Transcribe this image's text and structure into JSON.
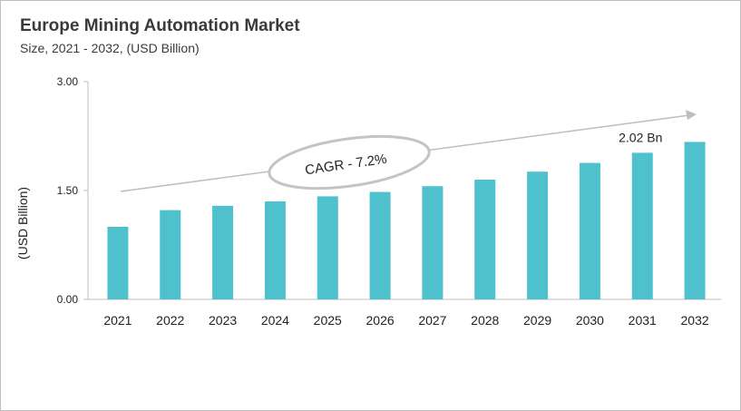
{
  "chart_data": {
    "type": "bar",
    "title": "Europe Mining Automation Market",
    "subtitle": "Size, 2021 - 2032, (USD Billion)",
    "xlabel": "",
    "ylabel": "(USD Billion)",
    "categories": [
      "2021",
      "2022",
      "2023",
      "2024",
      "2025",
      "2026",
      "2027",
      "2028",
      "2029",
      "2030",
      "2031",
      "2032"
    ],
    "values": [
      1.0,
      1.23,
      1.29,
      1.35,
      1.42,
      1.48,
      1.56,
      1.65,
      1.76,
      1.88,
      2.02,
      2.17
    ],
    "ylim": [
      0,
      3
    ],
    "yticks": [
      "0.00",
      "1.50",
      "3.00"
    ],
    "grid": false,
    "bar_color": "#4fc1cd",
    "annotations": {
      "cagr": "CAGR - 7.2%",
      "value_label": "2.02 Bn",
      "value_label_category": "2031"
    }
  }
}
